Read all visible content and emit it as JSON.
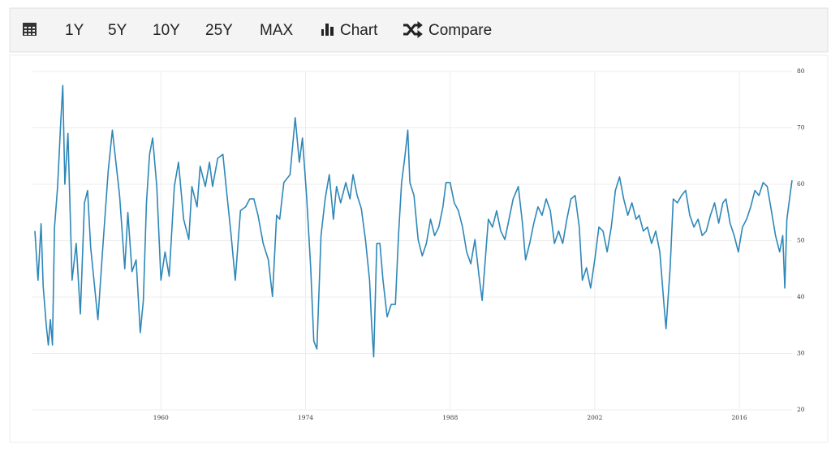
{
  "toolbar": {
    "buttons": [
      "1Y",
      "5Y",
      "10Y",
      "25Y",
      "MAX"
    ],
    "chart": "Chart",
    "compare": "Compare"
  },
  "chart_data": {
    "type": "line",
    "color": "#2e87b7",
    "grid": true,
    "xlim": [
      1947.8,
      2021.1
    ],
    "xticks": [
      1960,
      1974,
      1988,
      2002,
      2016
    ],
    "ylim": [
      20,
      80
    ],
    "yticks": [
      20,
      30,
      40,
      50,
      60,
      70,
      80
    ],
    "x": [
      1947.8,
      1948.1,
      1948.4,
      1948.6,
      1948.9,
      1949.1,
      1949.3,
      1949.5,
      1949.7,
      1950.0,
      1950.3,
      1950.5,
      1950.7,
      1951.0,
      1951.4,
      1951.8,
      1952.2,
      1952.6,
      1952.9,
      1953.2,
      1953.9,
      1954.4,
      1954.9,
      1955.3,
      1955.6,
      1956.0,
      1956.5,
      1956.8,
      1957.2,
      1957.6,
      1958.0,
      1958.3,
      1958.6,
      1958.9,
      1959.2,
      1959.6,
      1960.0,
      1960.4,
      1960.8,
      1961.3,
      1961.7,
      1962.2,
      1962.7,
      1963.0,
      1963.5,
      1963.8,
      1964.3,
      1964.7,
      1965.0,
      1965.5,
      1966.0,
      1966.4,
      1966.8,
      1967.2,
      1967.7,
      1968.2,
      1968.6,
      1969.0,
      1969.4,
      1969.9,
      1970.4,
      1970.8,
      1971.2,
      1971.5,
      1971.9,
      1972.5,
      1973.0,
      1973.4,
      1973.7,
      1974.1,
      1974.5,
      1974.8,
      1975.1,
      1975.5,
      1975.9,
      1976.3,
      1976.7,
      1977.0,
      1977.4,
      1977.9,
      1978.3,
      1978.6,
      1979.0,
      1979.4,
      1979.8,
      1980.2,
      1980.4,
      1980.6,
      1980.9,
      1981.2,
      1981.5,
      1981.9,
      1982.3,
      1982.7,
      1983.0,
      1983.3,
      1983.6,
      1983.9,
      1984.1,
      1984.5,
      1984.9,
      1985.3,
      1985.7,
      1986.1,
      1986.5,
      1986.9,
      1987.3,
      1987.6,
      1988.0,
      1988.4,
      1988.8,
      1989.2,
      1989.6,
      1990.0,
      1990.4,
      1990.8,
      1991.1,
      1991.4,
      1991.7,
      1992.1,
      1992.5,
      1992.9,
      1993.3,
      1993.7,
      1994.1,
      1994.6,
      1995.0,
      1995.3,
      1995.7,
      1996.1,
      1996.5,
      1996.9,
      1997.3,
      1997.7,
      1998.1,
      1998.5,
      1998.9,
      1999.3,
      1999.7,
      2000.1,
      2000.5,
      2000.8,
      2001.2,
      2001.6,
      2002.0,
      2002.4,
      2002.8,
      2003.2,
      2003.6,
      2004.0,
      2004.4,
      2004.8,
      2005.2,
      2005.6,
      2006.0,
      2006.3,
      2006.7,
      2007.1,
      2007.5,
      2007.9,
      2008.3,
      2008.7,
      2008.9,
      2009.3,
      2009.6,
      2010.0,
      2010.4,
      2010.8,
      2011.2,
      2011.6,
      2012.0,
      2012.4,
      2012.8,
      2013.2,
      2013.6,
      2014.0,
      2014.4,
      2014.7,
      2015.1,
      2015.5,
      2015.9,
      2016.3,
      2016.7,
      2017.1,
      2017.5,
      2017.9,
      2018.3,
      2018.7,
      2019.1,
      2019.5,
      2019.9,
      2020.2,
      2020.4,
      2020.6,
      2020.9,
      2021.1
    ],
    "values": [
      51.7,
      43,
      53,
      42,
      35,
      31.5,
      36,
      31.5,
      52.4,
      59.6,
      71,
      77.5,
      60,
      69,
      43,
      49.5,
      37,
      56.7,
      58.9,
      48.8,
      36,
      49.5,
      62.4,
      69.6,
      64.6,
      58,
      45,
      55,
      44.5,
      46.6,
      33.7,
      39.4,
      56.7,
      65.3,
      68.2,
      59.6,
      43,
      48,
      43.7,
      59.6,
      63.9,
      53.8,
      50.2,
      59.6,
      56,
      63.2,
      59.6,
      63.9,
      59.6,
      64.6,
      65.3,
      58,
      50.9,
      43,
      55.3,
      56,
      57.4,
      57.4,
      54.5,
      49.5,
      46.6,
      40.1,
      54.5,
      53.8,
      60.3,
      61.7,
      71.8,
      63.9,
      68.2,
      58,
      45.2,
      32.2,
      30.8,
      50.9,
      57.4,
      61.7,
      53.8,
      59.6,
      56.7,
      60.3,
      57.4,
      61.7,
      58,
      55.7,
      50.2,
      43,
      35.1,
      29.4,
      49.5,
      49.5,
      43,
      36.5,
      38.7,
      38.7,
      50.9,
      60.3,
      64.6,
      69.6,
      60.3,
      58,
      50.2,
      47.3,
      49.5,
      53.8,
      50.9,
      52.4,
      56,
      60.3,
      60.3,
      56.7,
      55.3,
      52.4,
      48,
      45.9,
      50.2,
      43.7,
      39.4,
      46.6,
      53.8,
      52.4,
      55.3,
      51.7,
      50.2,
      53.8,
      57.4,
      59.6,
      53.1,
      46.6,
      49.5,
      53.1,
      56,
      54.5,
      57.4,
      55.3,
      49.5,
      51.7,
      49.5,
      53.8,
      57.4,
      58,
      52.4,
      43,
      45.2,
      41.6,
      46.6,
      52.4,
      51.7,
      48,
      52.4,
      58.9,
      61.3,
      57.4,
      54.5,
      56.7,
      53.8,
      54.5,
      51.7,
      52.4,
      49.5,
      51.7,
      48,
      38.7,
      34.4,
      45.2,
      57.4,
      56.7,
      58,
      58.9,
      54.5,
      52.4,
      53.8,
      50.9,
      51.7,
      54.5,
      56.7,
      53.1,
      56.7,
      57.4,
      53.1,
      50.9,
      48,
      52.4,
      53.8,
      56,
      58.9,
      58,
      60.3,
      59.6,
      55.3,
      50.9,
      48,
      50.9,
      41.6,
      53.8,
      58,
      60.7
    ]
  }
}
